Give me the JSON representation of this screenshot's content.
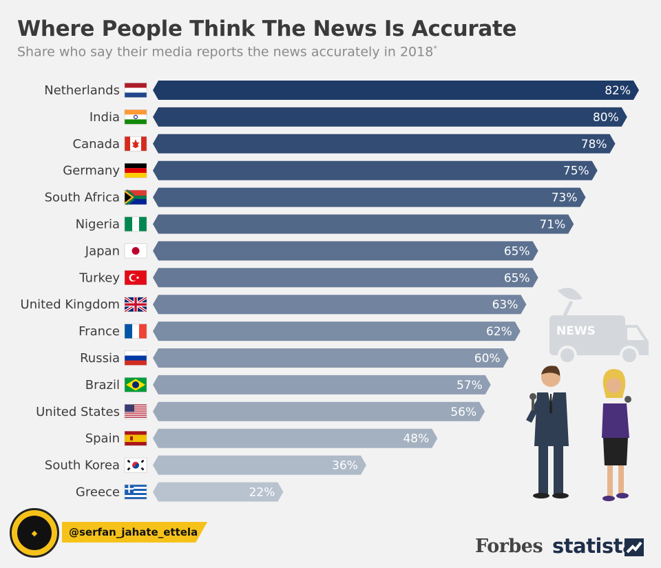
{
  "title": "Where People Think The News Is Accurate",
  "subtitle": "Share who say their media reports the news accurately in 2018",
  "subtitle_mark": "*",
  "chart_data": {
    "type": "bar",
    "orientation": "horizontal",
    "categories": [
      "Netherlands",
      "India",
      "Canada",
      "Germany",
      "South Africa",
      "Nigeria",
      "Japan",
      "Turkey",
      "United Kingdom",
      "France",
      "Russia",
      "Brazil",
      "United States",
      "Spain",
      "South Korea",
      "Greece"
    ],
    "values": [
      82,
      80,
      78,
      75,
      73,
      71,
      65,
      65,
      63,
      62,
      60,
      57,
      56,
      48,
      36,
      22
    ],
    "value_labels": [
      "82%",
      "80%",
      "78%",
      "75%",
      "73%",
      "71%",
      "65%",
      "65%",
      "63%",
      "62%",
      "60%",
      "57%",
      "56%",
      "48%",
      "36%",
      "22%"
    ],
    "unit": "%",
    "xlim": [
      0,
      82
    ],
    "grid": false,
    "legend": "none",
    "color_gradient": [
      "#1e3a66",
      "#b9c3cf"
    ]
  },
  "flags": [
    "netherlands-flag-icon",
    "india-flag-icon",
    "canada-flag-icon",
    "germany-flag-icon",
    "south-africa-flag-icon",
    "nigeria-flag-icon",
    "japan-flag-icon",
    "turkey-flag-icon",
    "united-kingdom-flag-icon",
    "france-flag-icon",
    "russia-flag-icon",
    "brazil-flag-icon",
    "united-states-flag-icon",
    "spain-flag-icon",
    "south-korea-flag-icon",
    "greece-flag-icon"
  ],
  "illustration": {
    "van_text": "NEWS"
  },
  "watermark": {
    "handle": "@serfan_jahate_ettela"
  },
  "brands": {
    "forbes": "Forbes",
    "statista": "statista"
  }
}
